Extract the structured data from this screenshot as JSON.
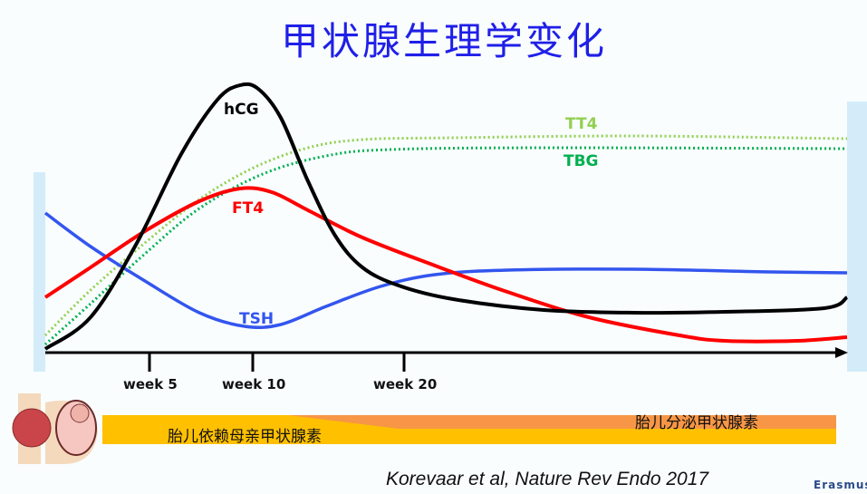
{
  "title": "甲状腺生理学变化",
  "curves": {
    "hcg": {
      "label": "hCG",
      "color": "#000000"
    },
    "tt4": {
      "label": "TT4",
      "color": "#92d050"
    },
    "tbg": {
      "label": "TBG",
      "color": "#00b050"
    },
    "ft4": {
      "label": "FT4",
      "color": "#ff0000"
    },
    "tsh": {
      "label": "TSH",
      "color": "#3355ee"
    }
  },
  "x_axis": {
    "ticks": [
      "week 5",
      "week 10",
      "week 20"
    ]
  },
  "bands": {
    "maternal": {
      "label": "胎儿依赖母亲甲状腺素",
      "color": "#ffc000"
    },
    "fetal": {
      "label": "胎儿分泌甲状腺素",
      "color": "#f79646"
    }
  },
  "citation": "Korevaar et al, Nature Rev Endo 2017",
  "logo": "Erasmus"
}
